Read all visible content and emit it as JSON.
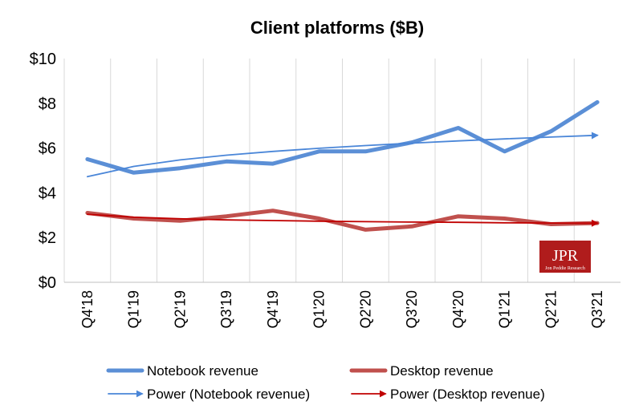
{
  "chart_data": {
    "type": "line",
    "title": "Client platforms ($B)",
    "xlabel": "",
    "ylabel": "",
    "ylim": [
      0,
      10
    ],
    "y_ticks": [
      0,
      2,
      4,
      6,
      8,
      10
    ],
    "y_tick_labels": [
      "$0",
      "$2",
      "$4",
      "$6",
      "$8",
      "$10"
    ],
    "grid": "vertical",
    "legend_position": "bottom",
    "categories": [
      "Q4'18",
      "Q1'19",
      "Q2'19",
      "Q3'19",
      "Q4'19",
      "Q1'20",
      "Q2'20",
      "Q3'20",
      "Q4'20",
      "Q1'21",
      "Q2'21",
      "Q3'21"
    ],
    "series": [
      {
        "name": "Notebook revenue",
        "kind": "data",
        "color": "#5b8fd6",
        "values": [
          5.5,
          4.9,
          5.1,
          5.4,
          5.3,
          5.85,
          5.85,
          6.25,
          6.9,
          5.85,
          6.75,
          8.05
        ]
      },
      {
        "name": "Desktop revenue",
        "kind": "data",
        "color": "#c0504d",
        "values": [
          3.1,
          2.85,
          2.75,
          2.95,
          3.2,
          2.85,
          2.35,
          2.5,
          2.95,
          2.85,
          2.6,
          2.65
        ]
      },
      {
        "name": "Power (Notebook revenue)",
        "kind": "trend",
        "color": "#4a86d8",
        "values": [
          4.72,
          5.18,
          5.47,
          5.68,
          5.85,
          5.99,
          6.11,
          6.22,
          6.32,
          6.41,
          6.49,
          6.57
        ]
      },
      {
        "name": "Power (Desktop revenue)",
        "kind": "trend",
        "color": "#c00000",
        "values": [
          3.04,
          2.91,
          2.84,
          2.79,
          2.76,
          2.73,
          2.71,
          2.69,
          2.68,
          2.66,
          2.65,
          2.64
        ]
      }
    ]
  },
  "logo": {
    "text": "JPR",
    "subtext": "Jon Peddie Research"
  }
}
